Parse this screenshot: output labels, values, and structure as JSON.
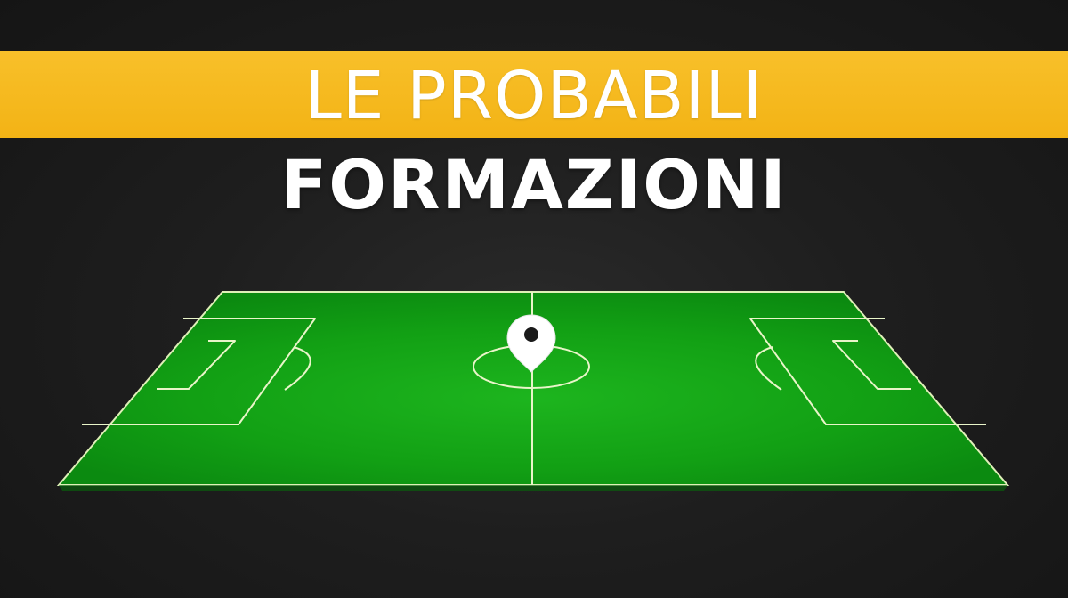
{
  "headline": {
    "line1": "LE PROBABILI",
    "line2": "FORMAZIONI"
  },
  "icons": {
    "pitch": "football-pitch-icon",
    "pin": "location-pin-icon"
  },
  "colors": {
    "background": "#1e1e1e",
    "banner": "#f5b81c",
    "text": "#ffffff",
    "pitch": "#12a316",
    "pitch_lines": "#e9f5c9"
  }
}
